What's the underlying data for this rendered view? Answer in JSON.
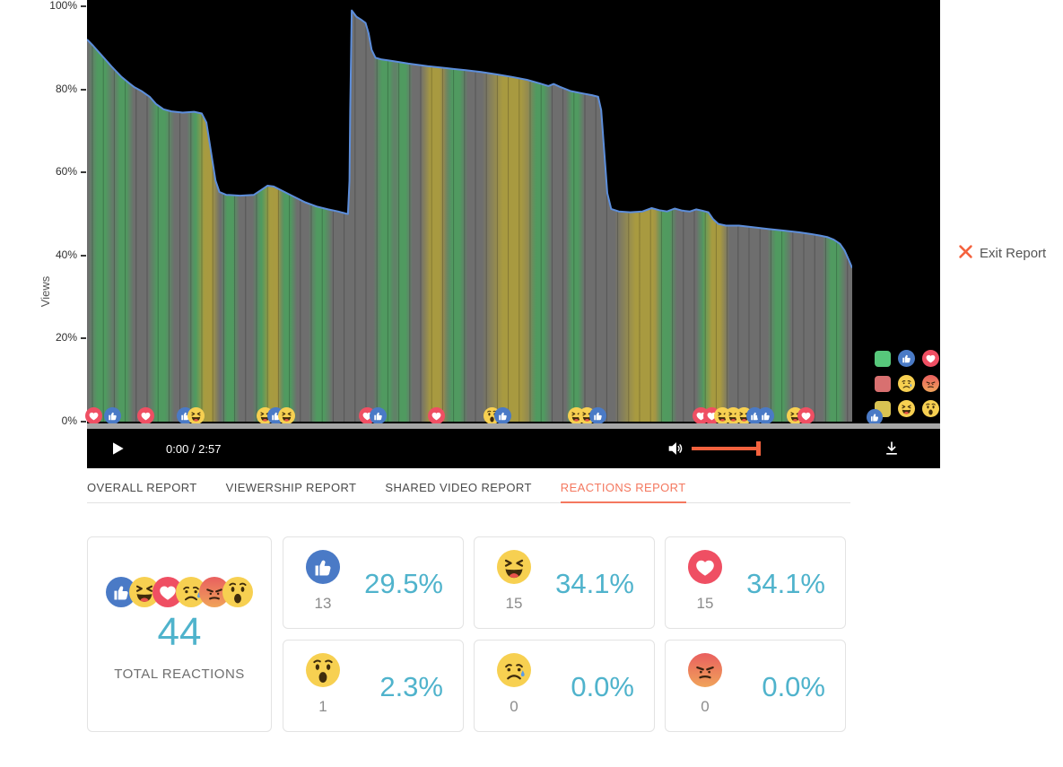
{
  "header": {
    "exit_label": "Exit Report"
  },
  "player": {
    "time_label": "0:00 / 2:57",
    "accent_color": "#f4623e"
  },
  "chart_data": {
    "type": "area",
    "title": "Views retention over video timeline with reaction overlays",
    "ylabel": "Views",
    "ylim": [
      0,
      100
    ],
    "grid": true,
    "duration": "2:57",
    "yticks": [
      {
        "label": "100%",
        "pct": 100
      },
      {
        "label": "80%",
        "pct": 80
      },
      {
        "label": "60%",
        "pct": 60
      },
      {
        "label": "40%",
        "pct": 40
      },
      {
        "label": "20%",
        "pct": 20
      },
      {
        "label": "0%",
        "pct": 0
      }
    ],
    "colors": {
      "background": "#000000",
      "fill": "#6e6e6e",
      "line": "#5d8edb",
      "grid_line": "rgba(0,0,0,0.22)",
      "stripe_green": "#4e9c5f",
      "stripe_yellow": "#ab9c3e"
    },
    "points": [
      [
        0.0,
        92
      ],
      [
        0.008,
        90.5
      ],
      [
        0.02,
        88
      ],
      [
        0.032,
        85.5
      ],
      [
        0.045,
        83
      ],
      [
        0.055,
        81.5
      ],
      [
        0.062,
        80.5
      ],
      [
        0.072,
        79.5
      ],
      [
        0.082,
        78.2
      ],
      [
        0.09,
        76.5
      ],
      [
        0.1,
        75.2
      ],
      [
        0.11,
        74.7
      ],
      [
        0.125,
        74.4
      ],
      [
        0.14,
        74.6
      ],
      [
        0.15,
        74.2
      ],
      [
        0.156,
        72
      ],
      [
        0.162,
        65
      ],
      [
        0.168,
        58
      ],
      [
        0.173,
        55.3
      ],
      [
        0.182,
        54.6
      ],
      [
        0.2,
        54.4
      ],
      [
        0.218,
        54.6
      ],
      [
        0.228,
        55.8
      ],
      [
        0.236,
        56.8
      ],
      [
        0.244,
        56.6
      ],
      [
        0.255,
        55.6
      ],
      [
        0.27,
        54.2
      ],
      [
        0.285,
        52.8
      ],
      [
        0.3,
        51.8
      ],
      [
        0.315,
        51.1
      ],
      [
        0.328,
        50.6
      ],
      [
        0.338,
        50.1
      ],
      [
        0.341,
        50
      ],
      [
        0.343,
        58
      ],
      [
        0.344,
        75
      ],
      [
        0.346,
        99
      ],
      [
        0.352,
        97.5
      ],
      [
        0.358,
        96.8
      ],
      [
        0.364,
        96
      ],
      [
        0.368,
        93.5
      ],
      [
        0.372,
        89.5
      ],
      [
        0.377,
        87.6
      ],
      [
        0.385,
        87.2
      ],
      [
        0.4,
        86.8
      ],
      [
        0.42,
        86.2
      ],
      [
        0.445,
        85.6
      ],
      [
        0.47,
        85.1
      ],
      [
        0.495,
        84.6
      ],
      [
        0.515,
        84.2
      ],
      [
        0.535,
        83.6
      ],
      [
        0.555,
        83
      ],
      [
        0.575,
        82.3
      ],
      [
        0.592,
        81.4
      ],
      [
        0.603,
        80.8
      ],
      [
        0.61,
        81.3
      ],
      [
        0.618,
        80.6
      ],
      [
        0.632,
        79.6
      ],
      [
        0.648,
        79
      ],
      [
        0.66,
        78.6
      ],
      [
        0.668,
        78.2
      ],
      [
        0.672,
        75
      ],
      [
        0.676,
        65
      ],
      [
        0.68,
        55
      ],
      [
        0.685,
        51.2
      ],
      [
        0.695,
        50.6
      ],
      [
        0.71,
        50.4
      ],
      [
        0.726,
        50.6
      ],
      [
        0.738,
        51.4
      ],
      [
        0.748,
        50.9
      ],
      [
        0.758,
        50.6
      ],
      [
        0.768,
        51.3
      ],
      [
        0.778,
        50.8
      ],
      [
        0.788,
        50.6
      ],
      [
        0.796,
        51.1
      ],
      [
        0.804,
        50.8
      ],
      [
        0.812,
        50.4
      ],
      [
        0.818,
        48.8
      ],
      [
        0.825,
        47.6
      ],
      [
        0.835,
        47.2
      ],
      [
        0.852,
        47.2
      ],
      [
        0.87,
        46.8
      ],
      [
        0.89,
        46.4
      ],
      [
        0.91,
        46
      ],
      [
        0.93,
        45.6
      ],
      [
        0.945,
        45.2
      ],
      [
        0.958,
        44.8
      ],
      [
        0.968,
        44.4
      ],
      [
        0.976,
        43.8
      ],
      [
        0.984,
        42.8
      ],
      [
        0.99,
        41.2
      ],
      [
        0.995,
        39.2
      ],
      [
        1.0,
        37
      ]
    ],
    "stripes": [
      {
        "t": 0.019,
        "w": 10,
        "c": "g"
      },
      {
        "t": 0.047,
        "w": 8,
        "c": "g"
      },
      {
        "t": 0.097,
        "w": 10,
        "c": "g"
      },
      {
        "t": 0.146,
        "w": 9,
        "c": "g"
      },
      {
        "t": 0.158,
        "w": 9,
        "c": "y"
      },
      {
        "t": 0.187,
        "w": 7,
        "c": "g"
      },
      {
        "t": 0.232,
        "w": 9,
        "c": "g"
      },
      {
        "t": 0.244,
        "w": 9,
        "c": "y"
      },
      {
        "t": 0.262,
        "w": 7,
        "c": "g"
      },
      {
        "t": 0.305,
        "w": 9,
        "c": "g"
      },
      {
        "t": 0.39,
        "w": 9,
        "c": "g"
      },
      {
        "t": 0.413,
        "w": 7,
        "c": "g"
      },
      {
        "t": 0.455,
        "w": 11,
        "c": "y"
      },
      {
        "t": 0.482,
        "w": 9,
        "c": "g"
      },
      {
        "t": 0.555,
        "w": 22,
        "c": "y"
      },
      {
        "t": 0.592,
        "w": 9,
        "c": "g"
      },
      {
        "t": 0.638,
        "w": 7,
        "c": "g"
      },
      {
        "t": 0.728,
        "w": 22,
        "c": "y"
      },
      {
        "t": 0.757,
        "w": 8,
        "c": "g"
      },
      {
        "t": 0.81,
        "w": 8,
        "c": "g"
      },
      {
        "t": 0.822,
        "w": 10,
        "c": "y"
      },
      {
        "t": 0.905,
        "w": 9,
        "c": "g"
      },
      {
        "t": 0.977,
        "w": 9,
        "c": "g"
      }
    ],
    "markers": [
      {
        "t": 0.009,
        "icons": [
          "love"
        ]
      },
      {
        "t": 0.033,
        "icons": [
          "like"
        ]
      },
      {
        "t": 0.077,
        "icons": [
          "love"
        ]
      },
      {
        "t": 0.128,
        "icons": [
          "like",
          "haha"
        ]
      },
      {
        "t": 0.233,
        "icons": [
          "haha",
          "like",
          "haha"
        ]
      },
      {
        "t": 0.366,
        "icons": [
          "love",
          "like"
        ]
      },
      {
        "t": 0.456,
        "icons": [
          "love"
        ]
      },
      {
        "t": 0.529,
        "icons": [
          "wow",
          "like"
        ]
      },
      {
        "t": 0.64,
        "icons": [
          "haha",
          "haha",
          "like"
        ]
      },
      {
        "t": 0.802,
        "icons": [
          "love",
          "love",
          "haha",
          "haha",
          "haha",
          "like",
          "like"
        ]
      },
      {
        "t": 0.925,
        "icons": [
          "haha",
          "love"
        ]
      }
    ]
  },
  "legend": {
    "rows": [
      {
        "swatch": "#57c87b",
        "icons": [
          "like",
          "love"
        ]
      },
      {
        "swatch": "#d87070",
        "icons": [
          "sad",
          "angry"
        ]
      },
      {
        "swatch": "#d8c252",
        "icons": [
          "haha",
          "wow"
        ],
        "badge": "like"
      }
    ]
  },
  "tabs": [
    {
      "label": "OVERALL REPORT",
      "active": false
    },
    {
      "label": "VIEWERSHIP REPORT",
      "active": false
    },
    {
      "label": "SHARED VIDEO REPORT",
      "active": false
    },
    {
      "label": "REACTIONS REPORT",
      "active": true
    }
  ],
  "summary": {
    "cluster": [
      "like",
      "haha",
      "love",
      "sad",
      "angry",
      "wow"
    ],
    "total": "44",
    "total_label": "TOTAL REACTIONS"
  },
  "reactions": [
    {
      "type": "like",
      "count": "13",
      "pct": "29.5%"
    },
    {
      "type": "haha",
      "count": "15",
      "pct": "34.1%"
    },
    {
      "type": "love",
      "count": "15",
      "pct": "34.1%"
    },
    {
      "type": "wow",
      "count": "1",
      "pct": "2.3%"
    },
    {
      "type": "sad",
      "count": "0",
      "pct": "0.0%"
    },
    {
      "type": "angry",
      "count": "0",
      "pct": "0.0%"
    }
  ],
  "theme": {
    "accent_teal": "#4fb3cc",
    "accent_orange_tab": "#f4785f",
    "accent_orange_control": "#f4623e",
    "emoji": {
      "like_blue": "#4a7ac6",
      "love_red": "#ef4f63",
      "face_yellow": "#f7d051",
      "feature_dark": "#3f2c0c",
      "tear_blue": "#5d9be4",
      "angry_top": "#e95f5f",
      "angry_bottom": "#f0a35a"
    }
  }
}
